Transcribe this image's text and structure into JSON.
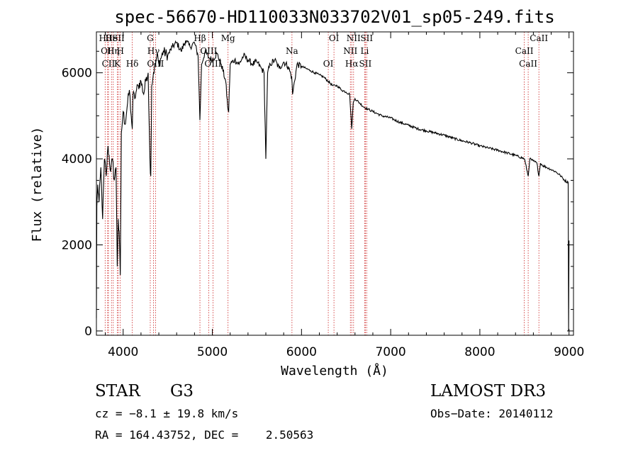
{
  "colors": {
    "axis": "#000000",
    "spectrum": "#000000",
    "line_marker": "#cc2222",
    "background": "#ffffff"
  },
  "chart_data": {
    "type": "line",
    "title": "spec-56670-HD110033N033702V01_sp05-249.fits",
    "xlabel": "Wavelength (Å)",
    "ylabel": "Flux (relative)",
    "xlim": [
      3700,
      9050
    ],
    "ylim": [
      -100,
      6950
    ],
    "x_ticks": [
      4000,
      5000,
      6000,
      7000,
      8000,
      9000
    ],
    "x_tick_labels": [
      "4000",
      "5000",
      "6000",
      "7000",
      "8000",
      "9000"
    ],
    "y_ticks": [
      0,
      2000,
      4000,
      6000
    ],
    "y_tick_labels": [
      "0",
      "2000",
      "4000",
      "6000"
    ],
    "series": [
      {
        "name": "spectrum",
        "x": [
          3700,
          3705,
          3715,
          3730,
          3750,
          3770,
          3790,
          3810,
          3830,
          3860,
          3880,
          3900,
          3920,
          3934,
          3945,
          3960,
          3968,
          3980,
          4000,
          4020,
          4050,
          4070,
          4090,
          4102,
          4110,
          4130,
          4150,
          4170,
          4200,
          4230,
          4260,
          4280,
          4300,
          4310,
          4320,
          4340,
          4360,
          4380,
          4400,
          4450,
          4500,
          4550,
          4600,
          4650,
          4700,
          4750,
          4800,
          4840,
          4861,
          4880,
          4920,
          4960,
          5000,
          5050,
          5100,
          5150,
          5172,
          5183,
          5200,
          5250,
          5300,
          5350,
          5400,
          5450,
          5500,
          5550,
          5580,
          5600,
          5620,
          5650,
          5700,
          5750,
          5800,
          5850,
          5890,
          5900,
          5950,
          6000,
          6050,
          6100,
          6150,
          6200,
          6250,
          6300,
          6350,
          6400,
          6450,
          6500,
          6540,
          6563,
          6580,
          6600,
          6650,
          6700,
          6750,
          6800,
          6900,
          7000,
          7100,
          7200,
          7300,
          7400,
          7500,
          7600,
          7700,
          7800,
          7900,
          8000,
          8100,
          8200,
          8300,
          8400,
          8500,
          8542,
          8560,
          8600,
          8640,
          8662,
          8680,
          8700,
          8750,
          8800,
          8850,
          8900,
          8950,
          8990,
          8995,
          9000
        ],
        "y": [
          300,
          2900,
          3400,
          3000,
          3800,
          2600,
          4000,
          3600,
          4300,
          3700,
          4000,
          3500,
          3800,
          1500,
          2600,
          2000,
          1300,
          4600,
          5100,
          4800,
          5300,
          5600,
          5000,
          4700,
          5500,
          5400,
          5600,
          5700,
          5800,
          5500,
          5900,
          6000,
          4000,
          3600,
          5700,
          6000,
          6200,
          6400,
          6200,
          6500,
          6400,
          6600,
          6700,
          6500,
          6750,
          6600,
          6700,
          6400,
          4900,
          6200,
          6500,
          6350,
          6300,
          6450,
          6200,
          5800,
          5200,
          5100,
          6200,
          6300,
          6200,
          6400,
          6300,
          6200,
          6250,
          6100,
          6000,
          4000,
          6000,
          6200,
          6300,
          6100,
          6250,
          6150,
          5900,
          5500,
          6200,
          6150,
          6100,
          6050,
          6000,
          5950,
          5900,
          5800,
          5700,
          5700,
          5600,
          5550,
          5500,
          4700,
          5300,
          5400,
          5300,
          5200,
          5150,
          5100,
          5000,
          4950,
          4850,
          4780,
          4700,
          4650,
          4600,
          4550,
          4480,
          4420,
          4370,
          4300,
          4250,
          4200,
          4140,
          4080,
          4000,
          3600,
          4000,
          3950,
          3900,
          3600,
          3900,
          3850,
          3800,
          3750,
          3700,
          3620,
          3500,
          3450,
          0,
          2100
        ]
      }
    ],
    "line_markers": [
      {
        "wavelength": 3798,
        "label": "Hθ"
      },
      {
        "wavelength": 3826,
        "label": "OII"
      },
      {
        "wavelength": 3835,
        "label": "CII"
      },
      {
        "wavelength": 3869,
        "label": "He"
      },
      {
        "wavelength": 3889,
        "label": "Hη"
      },
      {
        "wavelength": 3934,
        "label": "K"
      },
      {
        "wavelength": 3946,
        "label": "SII"
      },
      {
        "wavelength": 3968,
        "label": "H"
      },
      {
        "wavelength": 4102,
        "label": "Hδ"
      },
      {
        "wavelength": 4304,
        "label": "G"
      },
      {
        "wavelength": 4340,
        "label": "Hγ"
      },
      {
        "wavelength": 4363,
        "label": "OIII"
      },
      {
        "wavelength": 4861,
        "label": "Hβ"
      },
      {
        "wavelength": 4959,
        "label": "OIII"
      },
      {
        "wavelength": 5007,
        "label": "OIII"
      },
      {
        "wavelength": 5176,
        "label": "Mg"
      },
      {
        "wavelength": 5893,
        "label": "Na"
      },
      {
        "wavelength": 6300,
        "label": "OI"
      },
      {
        "wavelength": 6364,
        "label": "OI"
      },
      {
        "wavelength": 6548,
        "label": "NII"
      },
      {
        "wavelength": 6563,
        "label": "Hα"
      },
      {
        "wavelength": 6584,
        "label": "NII"
      },
      {
        "wavelength": 6708,
        "label": "Li"
      },
      {
        "wavelength": 6716,
        "label": "SII"
      },
      {
        "wavelength": 6731,
        "label": "SII"
      },
      {
        "wavelength": 8498,
        "label": "CaII"
      },
      {
        "wavelength": 8542,
        "label": "CaII"
      },
      {
        "wavelength": 8662,
        "label": "CaII"
      }
    ]
  },
  "info": {
    "object_class": "STAR",
    "subclass": "G3",
    "survey": "LAMOST DR3",
    "redshift_line": "cz = −8.1 ± 19.8 km/s",
    "obs_date_line": "Obs−Date: 20140112",
    "coords_line": "RA = 164.43752, DEC =    2.50563"
  }
}
